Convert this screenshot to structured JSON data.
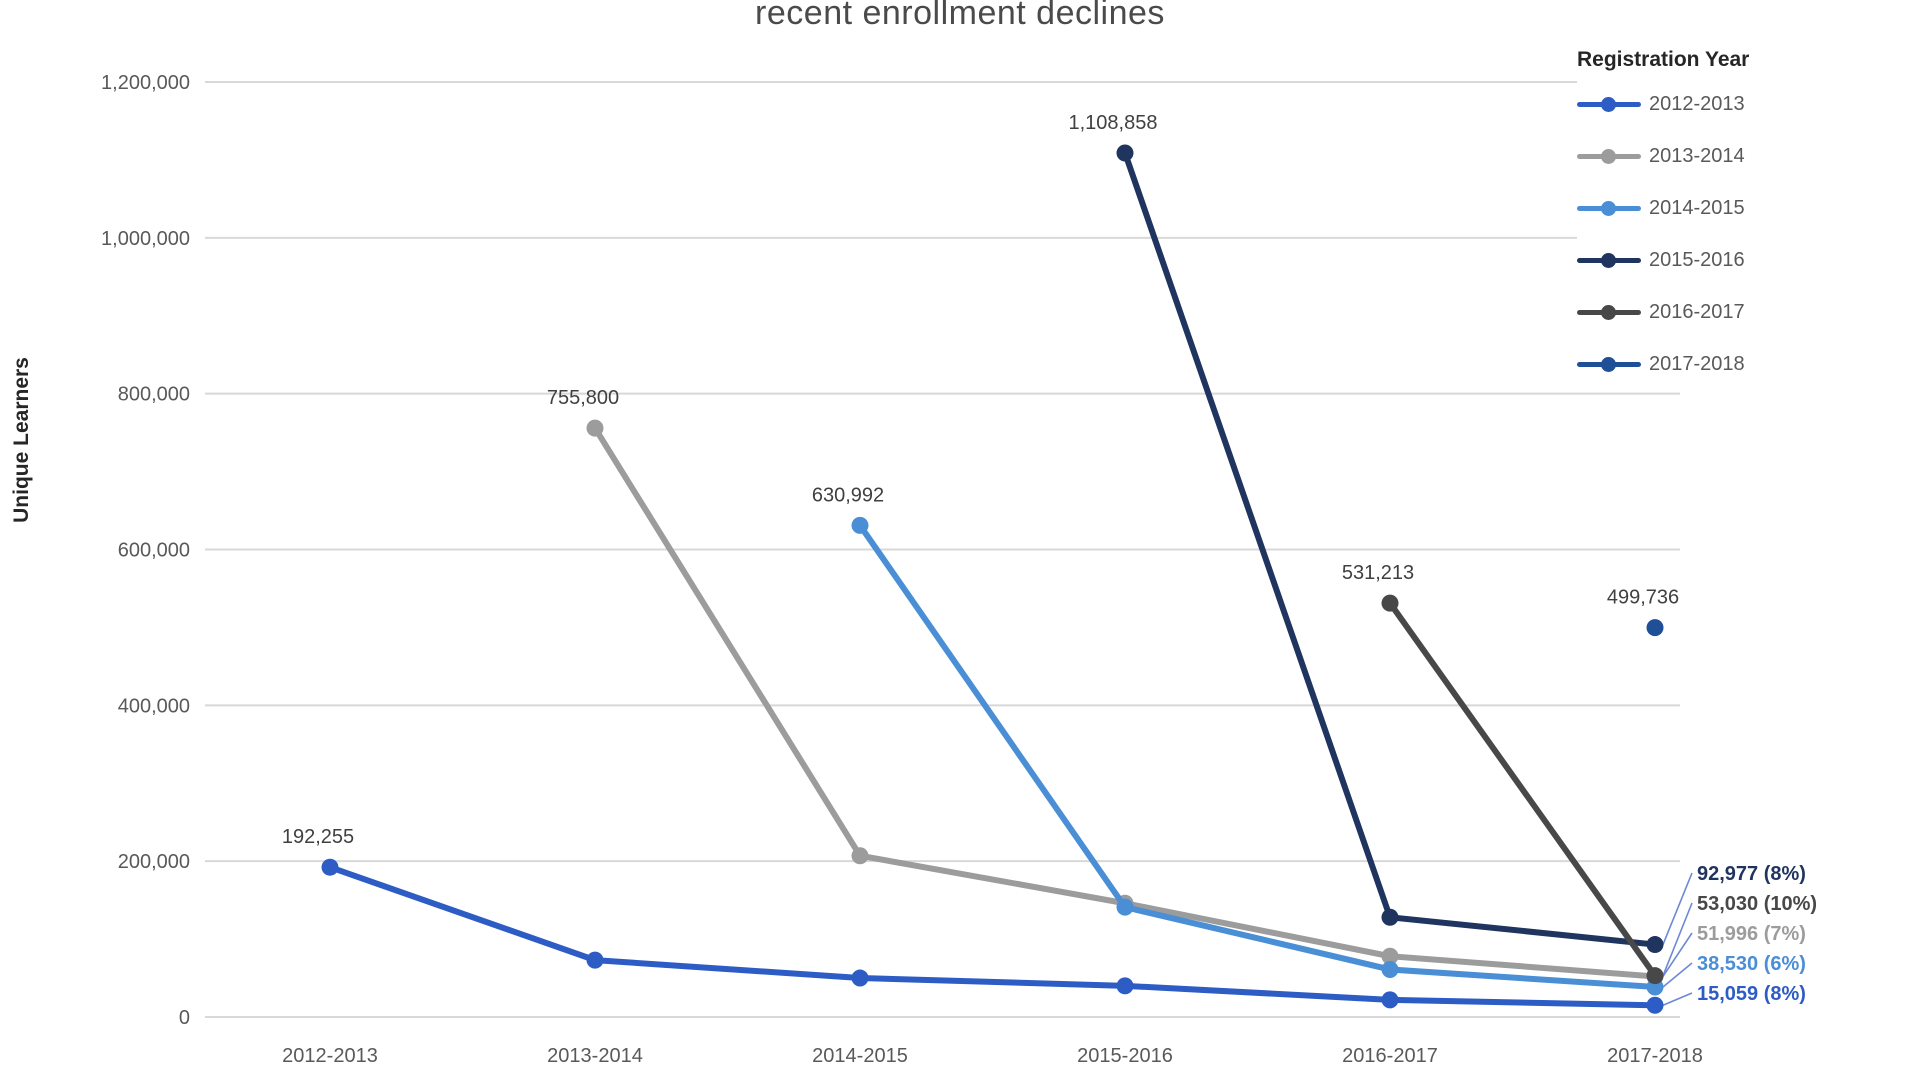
{
  "title": "recent enrollment declines",
  "axes": {
    "y_label": "Unique Learners",
    "y_ticks": [
      "1,200,000",
      "1,000,000",
      "800,000",
      "600,000",
      "400,000",
      "200,000",
      "0"
    ],
    "x_ticks": [
      "2012-2013",
      "2013-2014",
      "2014-2015",
      "2015-2016",
      "2016-2017",
      "2017-2018"
    ]
  },
  "legend": {
    "title": "Registration Year",
    "items": [
      "2012-2013",
      "2013-2014",
      "2014-2015",
      "2015-2016",
      "2016-2017",
      "2017-2018"
    ]
  },
  "chart_data": {
    "type": "line",
    "title": "recent enrollment declines",
    "xlabel": "",
    "ylabel": "Unique Learners",
    "categories": [
      "2012-2013",
      "2013-2014",
      "2014-2015",
      "2015-2016",
      "2016-2017",
      "2017-2018"
    ],
    "ylim": [
      0,
      1200000
    ],
    "ytick_step": 200000,
    "grid": true,
    "legend_position": "top-right",
    "legend_title": "Registration Year",
    "series": [
      {
        "name": "2012-2013",
        "color": "#2e5cc5",
        "values": [
          192255,
          73000,
          50000,
          40000,
          22000,
          15059
        ],
        "peak_label": "192,255",
        "end_label": "15,059 (8%)"
      },
      {
        "name": "2013-2014",
        "color": "#9c9c9c",
        "values": [
          null,
          755800,
          207000,
          146000,
          78000,
          51996
        ],
        "peak_label": "755,800",
        "end_label": "51,996 (7%)"
      },
      {
        "name": "2014-2015",
        "color": "#4a8fd5",
        "values": [
          null,
          null,
          630992,
          141000,
          61000,
          38530
        ],
        "peak_label": "630,992",
        "end_label": "38,530 (6%)"
      },
      {
        "name": "2015-2016",
        "color": "#1f345f",
        "values": [
          null,
          null,
          null,
          1108858,
          128000,
          92977
        ],
        "peak_label": "1,108,858",
        "end_label": "92,977 (8%)"
      },
      {
        "name": "2016-2017",
        "color": "#484848",
        "values": [
          null,
          null,
          null,
          null,
          531213,
          53030
        ],
        "peak_label": "531,213",
        "end_label": "53,030 (10%)"
      },
      {
        "name": "2017-2018",
        "color": "#1f4f96",
        "values": [
          null,
          null,
          null,
          null,
          null,
          499736
        ],
        "peak_label": "499,736",
        "end_label": null
      }
    ]
  }
}
